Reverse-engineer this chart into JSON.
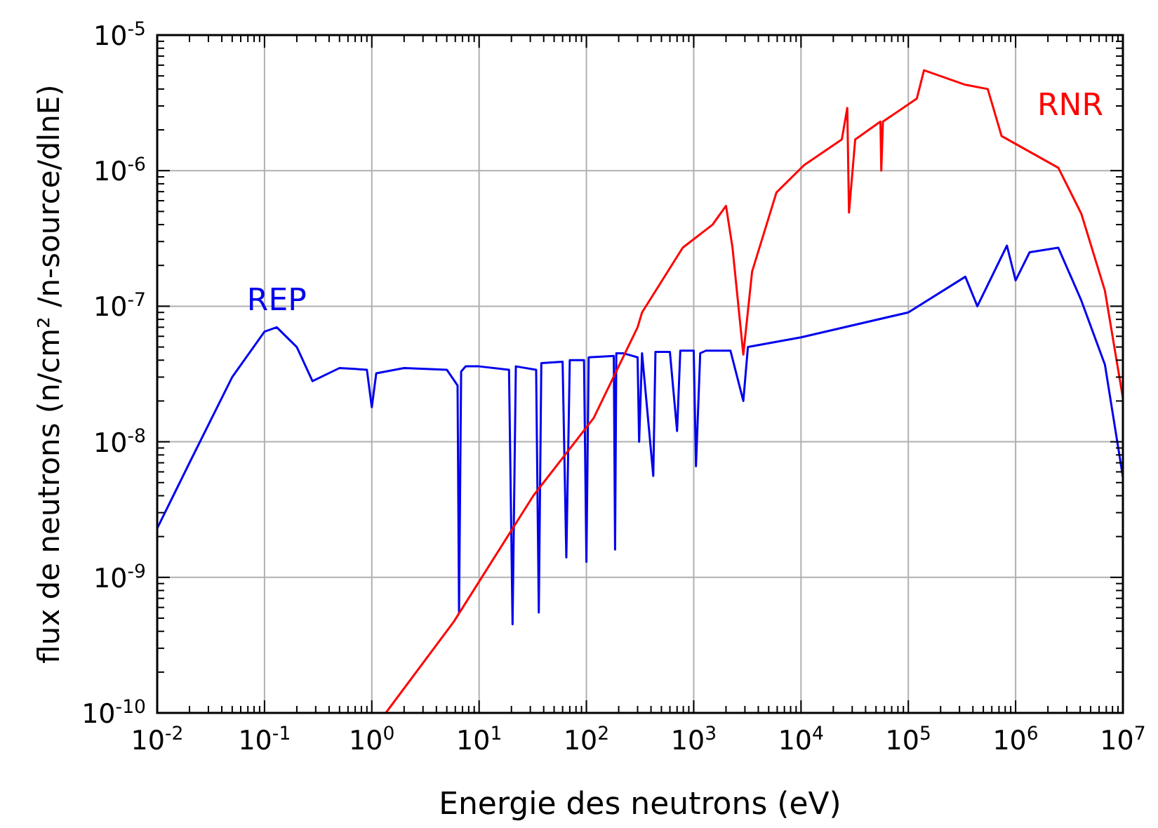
{
  "chart_data": {
    "type": "line",
    "xlabel": "Energie des neutrons (eV)",
    "ylabel": "flux de neutrons (n/cm² /n-source/dlnE)",
    "log": "xy",
    "grid": true,
    "marker": "none",
    "line_style": "solid",
    "xlim": [
      0.01,
      10000000
    ],
    "ylim": [
      1e-10,
      1e-05
    ],
    "xticks": [
      {
        "value": 0.01,
        "label": "10$^{-2}$"
      },
      {
        "value": 0.02,
        "label": null
      },
      {
        "value": 0.03,
        "label": null
      },
      {
        "value": 0.04,
        "label": null
      },
      {
        "value": 0.05,
        "label": null
      },
      {
        "value": 0.06,
        "label": null
      },
      {
        "value": 0.07,
        "label": null
      },
      {
        "value": 0.08,
        "label": null
      },
      {
        "value": 0.09,
        "label": null
      },
      {
        "value": 0.1,
        "label": "10$^{-1}$"
      },
      {
        "value": 0.2,
        "label": null
      },
      {
        "value": 0.3,
        "label": null
      },
      {
        "value": 0.4,
        "label": null
      },
      {
        "value": 0.5,
        "label": null
      },
      {
        "value": 0.6,
        "label": null
      },
      {
        "value": 0.7,
        "label": null
      },
      {
        "value": 0.8,
        "label": null
      },
      {
        "value": 0.9,
        "label": null
      },
      {
        "value": 1,
        "label": "10$^{0}$"
      },
      {
        "value": 2,
        "label": null
      },
      {
        "value": 3,
        "label": null
      },
      {
        "value": 4,
        "label": null
      },
      {
        "value": 5,
        "label": null
      },
      {
        "value": 6,
        "label": null
      },
      {
        "value": 7,
        "label": null
      },
      {
        "value": 8,
        "label": null
      },
      {
        "value": 9,
        "label": null
      },
      {
        "value": 10,
        "label": "10$^{1}$"
      },
      {
        "value": 20,
        "label": null
      },
      {
        "value": 30,
        "label": null
      },
      {
        "value": 40,
        "label": null
      },
      {
        "value": 50,
        "label": null
      },
      {
        "value": 60,
        "label": null
      },
      {
        "value": 70,
        "label": null
      },
      {
        "value": 80,
        "label": null
      },
      {
        "value": 90,
        "label": null
      },
      {
        "value": 100,
        "label": "10$^{2}$"
      },
      {
        "value": 200,
        "label": null
      },
      {
        "value": 300,
        "label": null
      },
      {
        "value": 400,
        "label": null
      },
      {
        "value": 500,
        "label": null
      },
      {
        "value": 600,
        "label": null
      },
      {
        "value": 700,
        "label": null
      },
      {
        "value": 800,
        "label": null
      },
      {
        "value": 900,
        "label": null
      },
      {
        "value": 1000,
        "label": "10$^{3}$"
      },
      {
        "value": 2000,
        "label": null
      },
      {
        "value": 3000,
        "label": null
      },
      {
        "value": 4000,
        "label": null
      },
      {
        "value": 5000,
        "label": null
      },
      {
        "value": 6000,
        "label": null
      },
      {
        "value": 7000,
        "label": null
      },
      {
        "value": 8000,
        "label": null
      },
      {
        "value": 9000,
        "label": null
      },
      {
        "value": 10000,
        "label": "10$^{4}$"
      },
      {
        "value": 20000,
        "label": null
      },
      {
        "value": 30000,
        "label": null
      },
      {
        "value": 40000,
        "label": null
      },
      {
        "value": 50000,
        "label": null
      },
      {
        "value": 60000,
        "label": null
      },
      {
        "value": 70000,
        "label": null
      },
      {
        "value": 80000,
        "label": null
      },
      {
        "value": 90000,
        "label": null
      },
      {
        "value": 100000,
        "label": "10$^{5}$"
      },
      {
        "value": 200000,
        "label": null
      },
      {
        "value": 300000,
        "label": null
      },
      {
        "value": 400000,
        "label": null
      },
      {
        "value": 500000,
        "label": null
      },
      {
        "value": 600000,
        "label": null
      },
      {
        "value": 700000,
        "label": null
      },
      {
        "value": 800000,
        "label": null
      },
      {
        "value": 900000,
        "label": null
      },
      {
        "value": 1000000,
        "label": "10$^{6}$"
      },
      {
        "value": 2000000,
        "label": null
      },
      {
        "value": 3000000,
        "label": null
      },
      {
        "value": 4000000,
        "label": null
      },
      {
        "value": 5000000,
        "label": null
      },
      {
        "value": 6000000,
        "label": null
      },
      {
        "value": 7000000,
        "label": null
      },
      {
        "value": 8000000,
        "label": null
      },
      {
        "value": 9000000,
        "label": null
      },
      {
        "value": 10000000,
        "label": "10$^{7}$"
      }
    ],
    "yticks": [
      {
        "value": 1e-10,
        "label": "10$^{-10}$"
      },
      {
        "value": 2e-10,
        "label": null
      },
      {
        "value": 3e-10,
        "label": null
      },
      {
        "value": 4e-10,
        "label": null
      },
      {
        "value": 5e-10,
        "label": null
      },
      {
        "value": 6e-10,
        "label": null
      },
      {
        "value": 7e-10,
        "label": null
      },
      {
        "value": 8e-10,
        "label": null
      },
      {
        "value": 9e-10,
        "label": null
      },
      {
        "value": 1e-09,
        "label": "10$^{-9}$"
      },
      {
        "value": 2e-09,
        "label": null
      },
      {
        "value": 3e-09,
        "label": null
      },
      {
        "value": 4e-09,
        "label": null
      },
      {
        "value": 5e-09,
        "label": null
      },
      {
        "value": 6e-09,
        "label": null
      },
      {
        "value": 7e-09,
        "label": null
      },
      {
        "value": 8e-09,
        "label": null
      },
      {
        "value": 9e-09,
        "label": null
      },
      {
        "value": 1e-08,
        "label": "10$^{-8}$"
      },
      {
        "value": 2e-08,
        "label": null
      },
      {
        "value": 3e-08,
        "label": null
      },
      {
        "value": 4e-08,
        "label": null
      },
      {
        "value": 5e-08,
        "label": null
      },
      {
        "value": 6e-08,
        "label": null
      },
      {
        "value": 7e-08,
        "label": null
      },
      {
        "value": 8e-08,
        "label": null
      },
      {
        "value": 9e-08,
        "label": null
      },
      {
        "value": 1e-07,
        "label": "10$^{-7}$"
      },
      {
        "value": 2e-07,
        "label": null
      },
      {
        "value": 3e-07,
        "label": null
      },
      {
        "value": 4e-07,
        "label": null
      },
      {
        "value": 5e-07,
        "label": null
      },
      {
        "value": 6e-07,
        "label": null
      },
      {
        "value": 7e-07,
        "label": null
      },
      {
        "value": 8e-07,
        "label": null
      },
      {
        "value": 9e-07,
        "label": null
      },
      {
        "value": 1e-06,
        "label": "10$^{-6}$"
      },
      {
        "value": 2e-06,
        "label": null
      },
      {
        "value": 3e-06,
        "label": null
      },
      {
        "value": 4e-06,
        "label": null
      },
      {
        "value": 5e-06,
        "label": null
      },
      {
        "value": 6e-06,
        "label": null
      },
      {
        "value": 7e-06,
        "label": null
      },
      {
        "value": 8e-06,
        "label": null
      },
      {
        "value": 9e-06,
        "label": null
      },
      {
        "value": 1e-05,
        "label": "10$^{-5}$"
      }
    ],
    "series": [
      {
        "name": "REP",
        "color": "#0000ee",
        "x": [
          0.01,
          0.02,
          0.05,
          0.1,
          0.13,
          0.2,
          0.28,
          0.5,
          0.9,
          1.0,
          1.1,
          2,
          5,
          6.3,
          6.5,
          6.8,
          7.5,
          10,
          19,
          20.5,
          22,
          34,
          36,
          38,
          60,
          65,
          70,
          95,
          100,
          105,
          180,
          185,
          190,
          220,
          300,
          310,
          330,
          420,
          440,
          600,
          700,
          750,
          1000,
          1050,
          1150,
          1300,
          2200,
          2900,
          3200,
          10000,
          100000,
          340000,
          440000,
          830000,
          1000000,
          1350000,
          2500000,
          4100000,
          6800000,
          10000000
        ],
        "values": [
          2.3e-09,
          7e-09,
          3e-08,
          6.5e-08,
          7e-08,
          5e-08,
          2.8e-08,
          3.5e-08,
          3.4e-08,
          1.8e-08,
          3.2e-08,
          3.5e-08,
          3.4e-08,
          2.6e-08,
          5.5e-10,
          3.3e-08,
          3.6e-08,
          3.6e-08,
          3.4e-08,
          4.5e-10,
          3.6e-08,
          3.4e-08,
          5.5e-10,
          3.8e-08,
          3.9e-08,
          1.4e-09,
          4e-08,
          4e-08,
          1.3e-09,
          4.2e-08,
          4.3e-08,
          1.6e-09,
          4.5e-08,
          4.5e-08,
          4.2e-08,
          1e-08,
          4.5e-08,
          5.6e-09,
          4.6e-08,
          4.6e-08,
          1.2e-08,
          4.7e-08,
          4.7e-08,
          6.6e-09,
          4.5e-08,
          4.7e-08,
          4.7e-08,
          2e-08,
          5e-08,
          5.9e-08,
          9e-08,
          1.65e-07,
          1e-07,
          2.8e-07,
          1.55e-07,
          2.5e-07,
          2.7e-07,
          1.1e-07,
          3.7e-08,
          5.5e-09
        ]
      },
      {
        "name": "RNR",
        "color": "#ff0000",
        "x": [
          1.35,
          5.8,
          32,
          117,
          300,
          330,
          790,
          1500,
          2000,
          2300,
          2900,
          3500,
          5900,
          10700,
          24000,
          27000,
          28000,
          32000,
          55000,
          56000,
          58000,
          120000,
          140000,
          340000,
          550000,
          740000,
          2500000,
          4100000,
          6800000,
          10000000
        ],
        "values": [
          1e-10,
          4.7e-10,
          4e-09,
          1.5e-08,
          7e-08,
          9e-08,
          2.7e-07,
          4e-07,
          5.5e-07,
          2.7e-07,
          4.4e-08,
          1.8e-07,
          6.9e-07,
          1.1e-06,
          1.7e-06,
          2.9e-06,
          4.9e-07,
          1.7e-06,
          2.3e-06,
          1e-06,
          2.3e-06,
          3.4e-06,
          5.5e-06,
          4.3e-06,
          4e-06,
          1.8e-06,
          1.05e-06,
          4.8e-07,
          1.3e-07,
          2.1e-08
        ]
      }
    ]
  }
}
